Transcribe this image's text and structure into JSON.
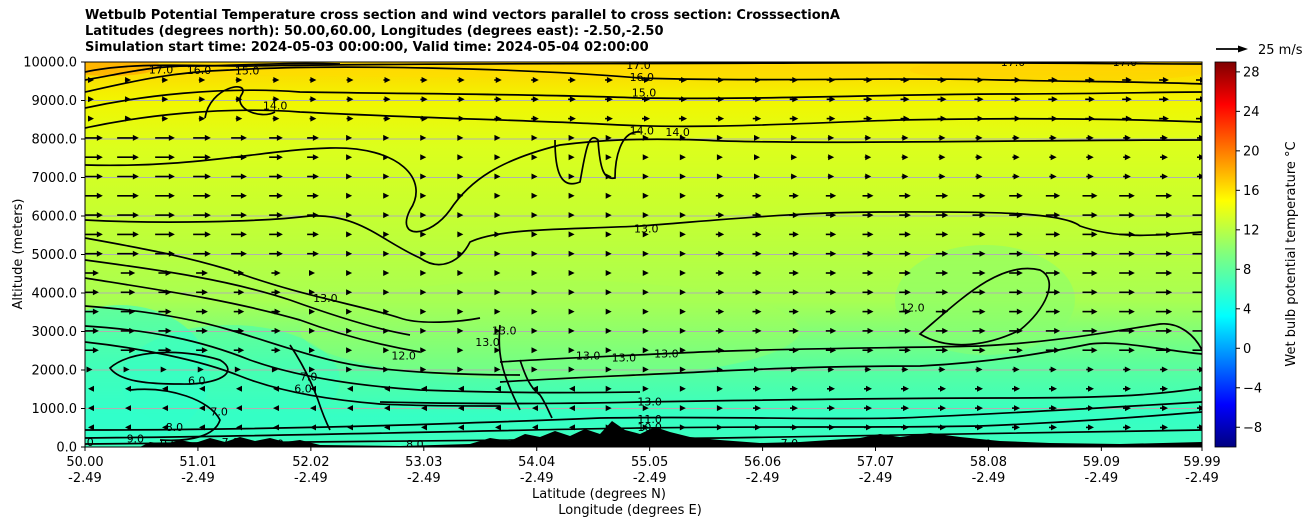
{
  "chart_data": {
    "type": "heatmap",
    "title": [
      "Wetbulb Potential Temperature cross section and wind vectors parallel to cross section: CrosssectionA",
      "Latitudes (degrees north): 50.00,60.00, Longitudes (degrees east): -2.50,-2.50",
      "Simulation start time: 2024-05-03 00:00:00, Valid time: 2024-05-04 02:00:00"
    ],
    "xlabel": "Latitude (degrees N)",
    "xlabel2": "Longitude (degrees E)",
    "ylabel": "Altitude (meters)",
    "colorbar_label": "Wet bulb potential temperature $^\\circ$C",
    "colorbar_label_display": "Wet bulb potential temperature °C",
    "colorbar_range": [
      -10,
      29
    ],
    "colorbar_ticks": [
      "-8",
      "-4",
      "0",
      "4",
      "8",
      "12",
      "16",
      "20",
      "24",
      "28"
    ],
    "colorbar_tick_values": [
      -8,
      -4,
      0,
      4,
      8,
      12,
      16,
      20,
      24,
      28
    ],
    "colormap": "jet",
    "quiver_key": "25 m/s",
    "ylim": [
      0,
      10000
    ],
    "y_ticks": [
      "0.0",
      "1000.0",
      "2000.0",
      "3000.0",
      "4000.0",
      "5000.0",
      "6000.0",
      "7000.0",
      "8000.0",
      "9000.0",
      "10000.0"
    ],
    "y_tick_values": [
      0,
      1000,
      2000,
      3000,
      4000,
      5000,
      6000,
      7000,
      8000,
      9000,
      10000
    ],
    "x_tick_positions": [
      50.0,
      51.01,
      52.02,
      53.03,
      54.04,
      55.05,
      56.06,
      57.07,
      58.08,
      59.09,
      59.99
    ],
    "x_tick_lat": [
      "50.00",
      "51.01",
      "52.02",
      "53.03",
      "54.04",
      "55.05",
      "56.06",
      "57.07",
      "58.08",
      "59.09",
      "59.99"
    ],
    "x_tick_lon": [
      "-2.49",
      "-2.49",
      "-2.49",
      "-2.49",
      "-2.49",
      "-2.49",
      "-2.49",
      "-2.49",
      "-2.49",
      "-2.49",
      "-2.49"
    ],
    "xlim": [
      50.0,
      59.99
    ],
    "grid": "horizontal",
    "contour_labels": [
      {
        "text": "17.0",
        "x": 50.68,
        "y": 9780
      },
      {
        "text": "16.0",
        "x": 51.02,
        "y": 9770
      },
      {
        "text": "15.0",
        "x": 51.45,
        "y": 9750
      },
      {
        "text": "14.0",
        "x": 51.7,
        "y": 8850
      },
      {
        "text": "17.0",
        "x": 54.95,
        "y": 9900
      },
      {
        "text": "16.0",
        "x": 54.98,
        "y": 9580
      },
      {
        "text": "15.0",
        "x": 55.0,
        "y": 9180
      },
      {
        "text": "14.0",
        "x": 54.98,
        "y": 8200
      },
      {
        "text": "14.0",
        "x": 55.3,
        "y": 8150
      },
      {
        "text": "13.0",
        "x": 55.02,
        "y": 5650
      },
      {
        "text": "13.0",
        "x": 52.15,
        "y": 3850
      },
      {
        "text": "12.0",
        "x": 52.85,
        "y": 2350
      },
      {
        "text": "13.0",
        "x": 53.75,
        "y": 3000
      },
      {
        "text": "13.0",
        "x": 53.6,
        "y": 2700
      },
      {
        "text": "13.0",
        "x": 54.5,
        "y": 2350
      },
      {
        "text": "13.0",
        "x": 54.82,
        "y": 2300
      },
      {
        "text": "13.0",
        "x": 55.2,
        "y": 2400
      },
      {
        "text": "13.0",
        "x": 55.05,
        "y": 1150
      },
      {
        "text": "11.0",
        "x": 55.05,
        "y": 700
      },
      {
        "text": "10.0",
        "x": 55.05,
        "y": 500
      },
      {
        "text": "12.0",
        "x": 57.4,
        "y": 3600
      },
      {
        "text": "17.0",
        "x": 58.3,
        "y": 9970
      },
      {
        "text": "17.0",
        "x": 59.3,
        "y": 9970
      },
      {
        "text": "6.0",
        "x": 51.0,
        "y": 1700
      },
      {
        "text": "6.0",
        "x": 51.95,
        "y": 1500
      },
      {
        "text": "7.0",
        "x": 52.0,
        "y": 1800
      },
      {
        "text": "7.0",
        "x": 51.2,
        "y": 900
      },
      {
        "text": "7.0",
        "x": 51.3,
        "y": 100
      },
      {
        "text": "8.0",
        "x": 50.8,
        "y": 500
      },
      {
        "text": "8.0",
        "x": 52.95,
        "y": 50
      },
      {
        "text": "9.0",
        "x": 50.45,
        "y": 200
      },
      {
        "text": "9.0",
        "x": 50.75,
        "y": 70
      },
      {
        "text": "7.0",
        "x": 56.3,
        "y": 80
      },
      {
        "text": "10.0",
        "x": 58.0,
        "y": 60
      },
      {
        "text": "6.0",
        "x": 51.7,
        "y": 60
      },
      {
        "text": "8.0",
        "x": 50.0,
        "y": 100
      }
    ]
  }
}
